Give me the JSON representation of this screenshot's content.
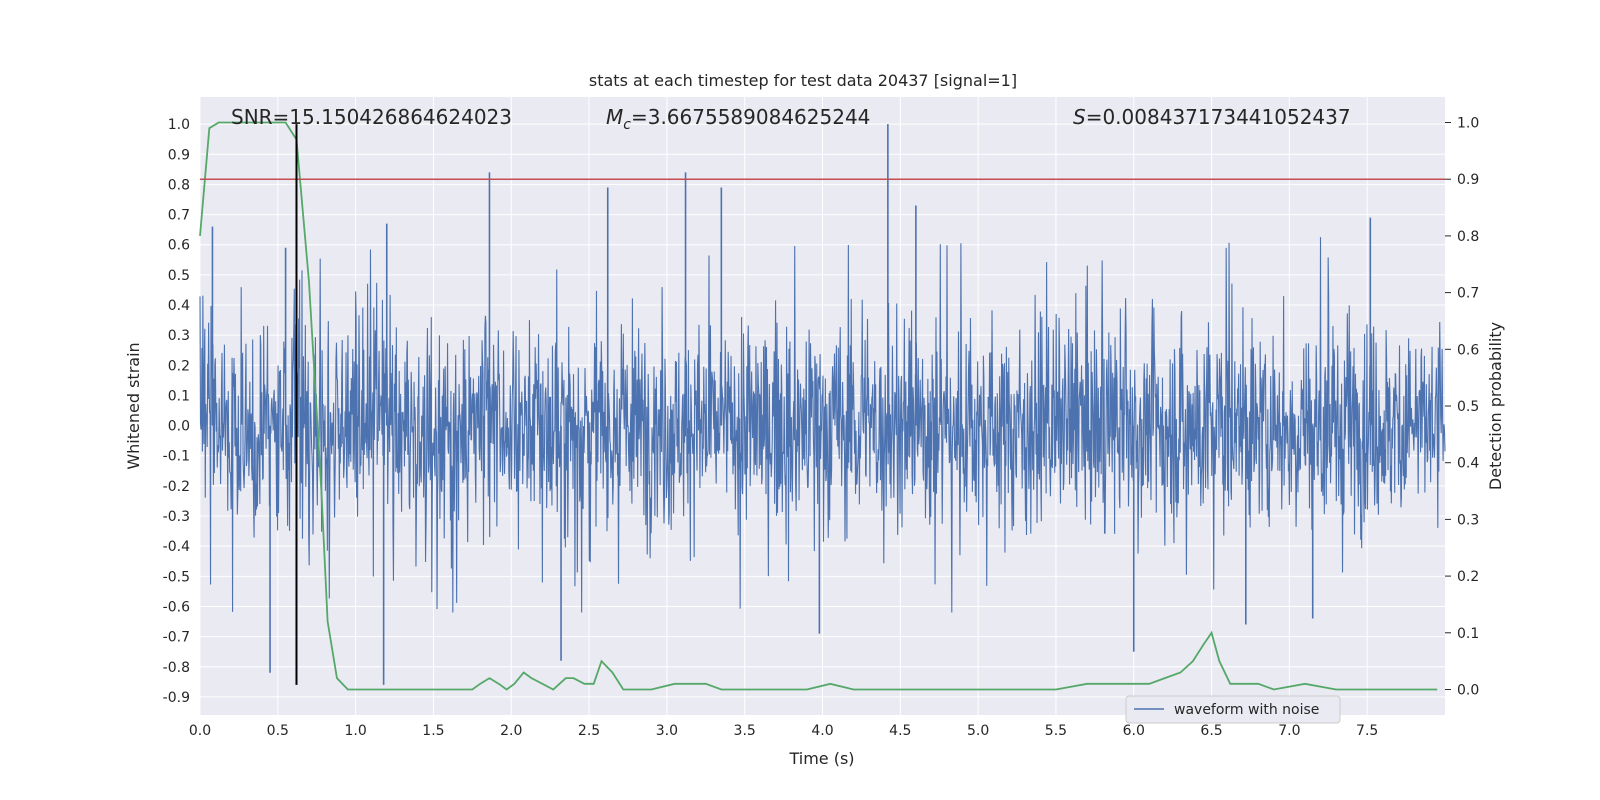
{
  "chart_data": {
    "type": "line",
    "title": "stats at each timestep for test data 20437 [signal=1]",
    "xlabel": "Time (s)",
    "ylabel_left": "Whitened strain",
    "ylabel_right": "Detection probability",
    "xlim": [
      0.0,
      8.0
    ],
    "ylim_left": [
      -0.96,
      1.09
    ],
    "ylim_right": [
      -0.045,
      1.045
    ],
    "x_ticks": [
      "0.0",
      "0.5",
      "1.0",
      "1.5",
      "2.0",
      "2.5",
      "3.0",
      "3.5",
      "4.0",
      "4.5",
      "5.0",
      "5.5",
      "6.0",
      "6.5",
      "7.0",
      "7.5"
    ],
    "y_ticks_left": [
      "-0.9",
      "-0.8",
      "-0.7",
      "-0.6",
      "-0.5",
      "-0.4",
      "-0.3",
      "-0.2",
      "-0.1",
      "0.0",
      "0.1",
      "0.2",
      "0.3",
      "0.4",
      "0.5",
      "0.6",
      "0.7",
      "0.8",
      "0.9",
      "1.0"
    ],
    "y_ticks_right": [
      "0.0",
      "0.1",
      "0.2",
      "0.3",
      "0.4",
      "0.5",
      "0.6",
      "0.7",
      "0.8",
      "0.9",
      "1.0"
    ],
    "grid": true,
    "legend_position": "lower-right",
    "annotations": {
      "snr": "SNR=15.150426864624023",
      "mc_symbol": "M",
      "mc_subscript": "c",
      "mc_value": "=3.6675589084625244",
      "s_symbol": "S",
      "s_value": "=0.008437173441052437"
    },
    "threshold_line": {
      "value": 0.9,
      "axis": "right",
      "color": "#c44e52"
    },
    "marker_line": {
      "x": 0.62,
      "y_range": [
        -0.86,
        1.0
      ],
      "color": "#000000"
    },
    "series": [
      {
        "name": "waveform with noise",
        "axis": "left",
        "color": "#4c72b0",
        "kind": "dense_noise",
        "duration_s": 8.0,
        "band_amplitude": 0.3,
        "spikes": [
          {
            "x": 0.45,
            "y": -0.82
          },
          {
            "x": 0.08,
            "y": 0.66
          },
          {
            "x": 0.55,
            "y": 0.59
          },
          {
            "x": 1.18,
            "y": -0.86
          },
          {
            "x": 1.2,
            "y": 0.67
          },
          {
            "x": 1.86,
            "y": 0.84
          },
          {
            "x": 2.32,
            "y": -0.78
          },
          {
            "x": 2.62,
            "y": 0.79
          },
          {
            "x": 3.12,
            "y": 0.84
          },
          {
            "x": 3.35,
            "y": 0.79
          },
          {
            "x": 3.98,
            "y": -0.69
          },
          {
            "x": 4.42,
            "y": 1.0
          },
          {
            "x": 4.6,
            "y": 0.73
          },
          {
            "x": 6.0,
            "y": -0.75
          },
          {
            "x": 6.72,
            "y": -0.66
          },
          {
            "x": 7.52,
            "y": 0.69
          },
          {
            "x": 7.15,
            "y": -0.64
          }
        ]
      },
      {
        "name": "",
        "axis": "right",
        "color": "#55a868",
        "x": [
          0.0,
          0.06,
          0.12,
          0.2,
          0.3,
          0.4,
          0.5,
          0.55,
          0.62,
          0.7,
          0.78,
          0.82,
          0.88,
          0.95,
          1.05,
          1.2,
          1.4,
          1.6,
          1.75,
          1.8,
          1.86,
          1.92,
          1.97,
          2.02,
          2.08,
          2.13,
          2.2,
          2.27,
          2.35,
          2.4,
          2.47,
          2.53,
          2.58,
          2.65,
          2.72,
          2.8,
          2.9,
          3.05,
          3.15,
          3.25,
          3.35,
          3.5,
          3.7,
          3.9,
          4.05,
          4.2,
          4.5,
          5.0,
          5.3,
          5.5,
          5.7,
          5.88,
          6.02,
          6.1,
          6.2,
          6.3,
          6.38,
          6.45,
          6.5,
          6.55,
          6.62,
          6.7,
          6.8,
          6.9,
          7.1,
          7.3,
          7.6,
          7.95
        ],
        "y": [
          0.8,
          0.99,
          1.0,
          1.0,
          1.0,
          1.0,
          1.0,
          1.0,
          0.97,
          0.72,
          0.35,
          0.12,
          0.02,
          0.0,
          0.0,
          0.0,
          0.0,
          0.0,
          0.0,
          0.01,
          0.02,
          0.01,
          0.0,
          0.01,
          0.03,
          0.02,
          0.01,
          0.0,
          0.02,
          0.02,
          0.01,
          0.01,
          0.05,
          0.03,
          0.0,
          0.0,
          0.0,
          0.01,
          0.01,
          0.01,
          0.0,
          0.0,
          0.0,
          0.0,
          0.01,
          0.0,
          0.0,
          0.0,
          0.0,
          0.0,
          0.01,
          0.01,
          0.01,
          0.01,
          0.02,
          0.03,
          0.05,
          0.08,
          0.1,
          0.05,
          0.01,
          0.01,
          0.01,
          0.0,
          0.01,
          0.0,
          0.0,
          0.0
        ]
      }
    ]
  }
}
